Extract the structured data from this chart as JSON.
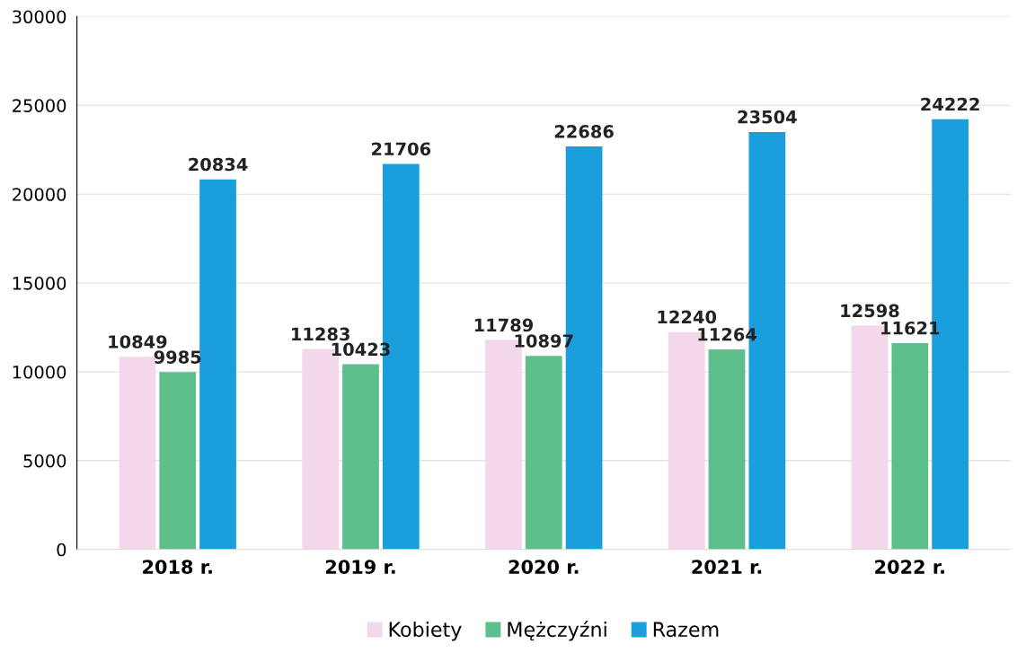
{
  "chart_data": {
    "type": "bar",
    "categories": [
      "2018 r.",
      "2019 r.",
      "2020 r.",
      "2021 r.",
      "2022 r."
    ],
    "series": [
      {
        "name": "Kobiety",
        "color": "#f2d8ea",
        "values": [
          10849,
          11283,
          11789,
          12240,
          12598
        ]
      },
      {
        "name": "Mężczyźni",
        "color": "#5dbf8c",
        "values": [
          9985,
          10423,
          10897,
          11264,
          11621
        ]
      },
      {
        "name": "Razem",
        "color": "#1a9fdc",
        "values": [
          20834,
          21706,
          22686,
          23504,
          24222
        ]
      }
    ],
    "ylim": [
      0,
      30000
    ],
    "yticks": [
      0,
      5000,
      10000,
      15000,
      20000,
      25000,
      30000
    ],
    "grid": "y",
    "legend": "bottom",
    "data_labels": true
  }
}
